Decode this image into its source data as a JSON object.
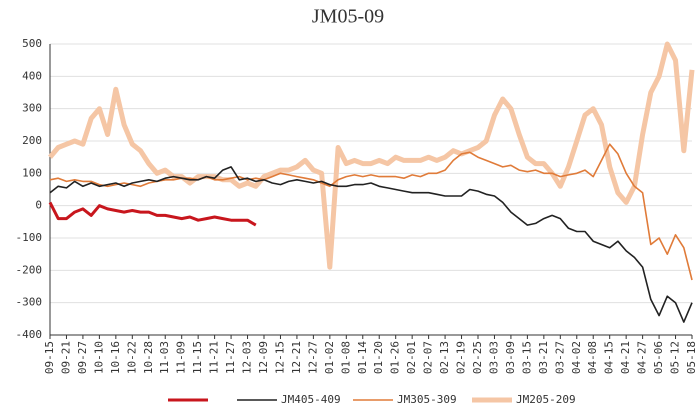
{
  "chart_data": {
    "type": "line",
    "title": "JM05-09",
    "categories": [
      "09-15",
      null,
      "09-21",
      null,
      "09-27",
      null,
      "10-10",
      null,
      "10-16",
      null,
      "10-22",
      null,
      "10-28",
      null,
      "11-03",
      null,
      "11-09",
      null,
      "11-15",
      null,
      "11-21",
      null,
      "11-27",
      null,
      "12-03",
      null,
      "12-09",
      null,
      "12-15",
      null,
      "12-21",
      null,
      "12-27",
      null,
      "01-02",
      null,
      "01-08",
      null,
      "01-14",
      null,
      "01-20",
      null,
      "01-26",
      null,
      "02-01",
      null,
      "02-07",
      null,
      "02-13",
      null,
      "02-19",
      null,
      "02-25",
      null,
      "03-03",
      null,
      "03-09",
      null,
      "03-15",
      null,
      "03-21",
      null,
      "03-27",
      null,
      "04-02",
      null,
      "04-08",
      null,
      "04-15",
      null,
      "04-21",
      null,
      "04-27",
      null,
      "05-06",
      null,
      "05-12",
      null,
      "05-18"
    ],
    "series": [
      {
        "color": "#c8161d",
        "width": 3,
        "values": [
          10,
          -40,
          -40,
          -20,
          -10,
          -30,
          0,
          -10,
          -15,
          -20,
          -15,
          -20,
          -20,
          -30,
          -30,
          -35,
          -40,
          -35,
          -45,
          -40,
          -35,
          -40,
          -45,
          -45,
          -45,
          -60,
          null,
          null,
          null,
          null,
          null,
          null,
          null,
          null,
          null,
          null,
          null,
          null,
          null,
          null,
          null,
          null,
          null,
          null,
          null,
          null,
          null,
          null,
          null,
          null,
          null,
          null,
          null,
          null,
          null,
          null,
          null,
          null,
          null,
          null,
          null,
          null,
          null,
          null,
          null,
          null,
          null,
          null,
          null,
          null,
          null,
          null,
          null,
          null,
          null,
          null,
          null,
          null,
          null
        ]
      },
      {
        "name": "JM405-409",
        "color": "#222222",
        "width": 1.6,
        "values": [
          40,
          60,
          55,
          75,
          60,
          70,
          60,
          65,
          70,
          60,
          70,
          75,
          80,
          75,
          85,
          90,
          85,
          80,
          80,
          90,
          85,
          110,
          120,
          80,
          85,
          75,
          80,
          70,
          65,
          75,
          80,
          75,
          70,
          75,
          65,
          60,
          60,
          65,
          65,
          70,
          60,
          55,
          50,
          45,
          40,
          40,
          40,
          35,
          30,
          30,
          30,
          50,
          45,
          35,
          30,
          10,
          -20,
          -40,
          -60,
          -55,
          -40,
          -30,
          -40,
          -70,
          -80,
          -80,
          -110,
          -120,
          -130,
          -110,
          -140,
          -160,
          -190,
          -290,
          -340,
          -280,
          -300,
          -360,
          -300
        ]
      },
      {
        "name": "JM305-309",
        "color": "#e07b39",
        "width": 1.6,
        "values": [
          80,
          85,
          75,
          80,
          75,
          75,
          65,
          60,
          65,
          70,
          65,
          60,
          70,
          75,
          80,
          80,
          85,
          85,
          80,
          90,
          80,
          80,
          85,
          90,
          80,
          85,
          80,
          90,
          100,
          95,
          90,
          85,
          80,
          70,
          60,
          80,
          90,
          95,
          90,
          95,
          90,
          90,
          90,
          85,
          95,
          90,
          100,
          100,
          110,
          140,
          160,
          165,
          150,
          140,
          130,
          120,
          125,
          110,
          105,
          110,
          100,
          100,
          90,
          95,
          100,
          110,
          90,
          140,
          190,
          160,
          100,
          60,
          40,
          -120,
          -100,
          -150,
          -90,
          -130,
          -230
        ]
      },
      {
        "name": "JM205-209",
        "color": "#f5c6a5",
        "width": 5,
        "values": [
          150,
          180,
          190,
          200,
          190,
          270,
          300,
          220,
          360,
          250,
          190,
          170,
          130,
          100,
          110,
          90,
          90,
          70,
          90,
          90,
          90,
          80,
          80,
          60,
          70,
          60,
          90,
          100,
          110,
          110,
          120,
          140,
          110,
          100,
          -190,
          180,
          130,
          140,
          130,
          130,
          140,
          130,
          150,
          140,
          140,
          140,
          150,
          140,
          150,
          170,
          160,
          170,
          180,
          200,
          280,
          330,
          300,
          220,
          150,
          130,
          130,
          100,
          60,
          120,
          200,
          280,
          300,
          250,
          120,
          40,
          10,
          60,
          220,
          350,
          400,
          500,
          450,
          170,
          420
        ]
      }
    ],
    "ylim": [
      -400,
      500
    ],
    "yticks": [
      -400,
      -300,
      -200,
      -100,
      0,
      100,
      200,
      300,
      400,
      500
    ],
    "grid": true
  }
}
